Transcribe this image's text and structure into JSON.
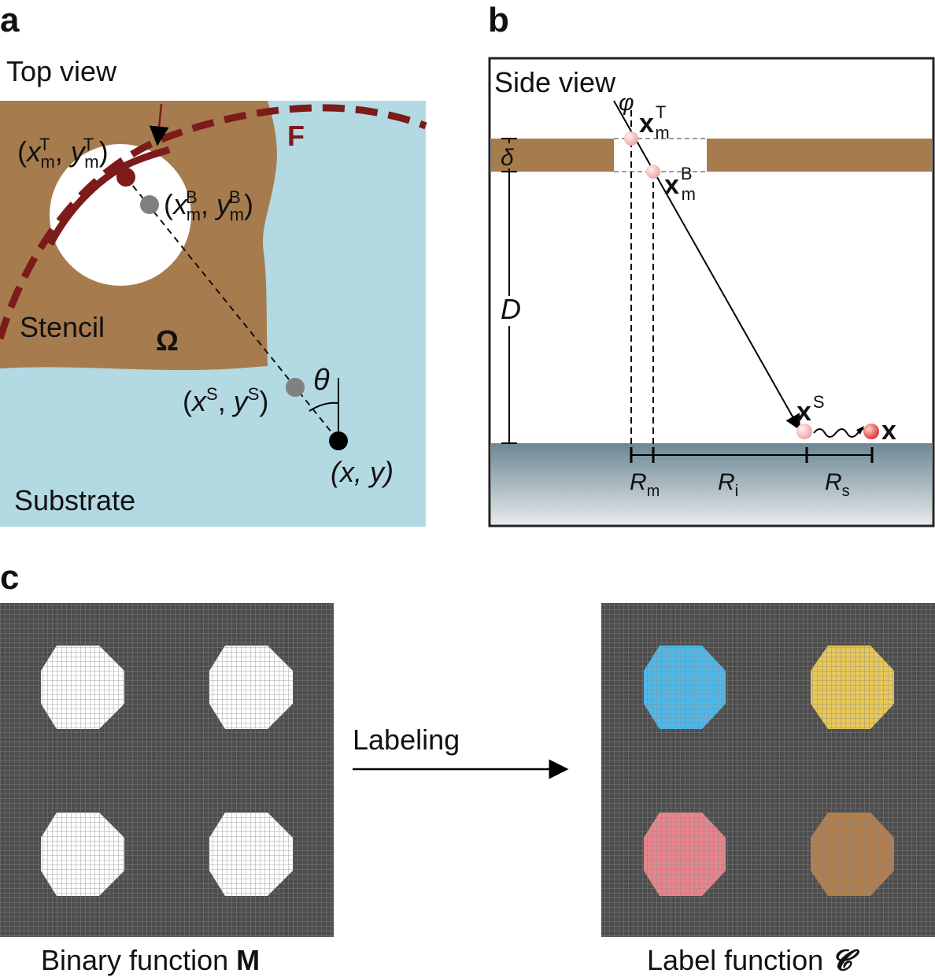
{
  "panel_a": {
    "letter": "a",
    "view_title": "Top view",
    "stencil_label": "Stencil",
    "omega_label": "Ω",
    "substrate_label": "Substrate",
    "f_label": "F",
    "theta_label": "θ",
    "point_top": {
      "open": "(",
      "x": "x",
      "sub1": "m",
      "sup1": "T",
      "comma": ", ",
      "y": "y",
      "sub2": "m",
      "sup2": "T",
      "close": ")"
    },
    "point_bottom": {
      "open": "(",
      "x": "x",
      "sub1": "m",
      "sup1": "B",
      "comma": ", ",
      "y": "y",
      "sub2": "m",
      "sup2": "B",
      "close": ")"
    },
    "point_surface": {
      "open": "(",
      "x": "x",
      "sup1": "S",
      "comma": ", ",
      "y": "y",
      "sup2": "S",
      "close": ")"
    },
    "point_final": "(x, y)",
    "colors": {
      "stencil": "#a67c4e",
      "substrate": "#b3d9e3",
      "feature": "#7d1a1a",
      "hole": "#ffffff"
    }
  },
  "panel_b": {
    "letter": "b",
    "view_title": "Side view",
    "phi": "φ",
    "xT": {
      "base": "x",
      "sub": "m",
      "sup": "T"
    },
    "xB": {
      "base": "x",
      "sub": "m",
      "sup": "B"
    },
    "xS": {
      "base": "x",
      "sup": "S"
    },
    "x": "x",
    "delta": "δ",
    "D": "D",
    "Rm": {
      "base": "R",
      "sub": "m"
    },
    "Ri": {
      "base": "R",
      "sub": "i"
    },
    "Rs": {
      "base": "R",
      "sub": "s"
    },
    "colors": {
      "stencil": "#a67c4e",
      "substrate_top": "#6b8793",
      "substrate_bottom": "#e5e8ea",
      "particle": "#e84b4b"
    }
  },
  "panel_c": {
    "letter": "c",
    "arrow_label": "Labeling",
    "left_caption_text": "Binary function ",
    "left_caption_symbol": "M",
    "right_caption_text": "Label function ",
    "right_caption_symbol": "𝓒",
    "colors": {
      "grid_bg": "#4d4d4d",
      "binary_blob": "#ffffff",
      "label_blobs": [
        "#4fb8e8",
        "#e8c858",
        "#e8848c",
        "#b07d4e"
      ]
    }
  }
}
